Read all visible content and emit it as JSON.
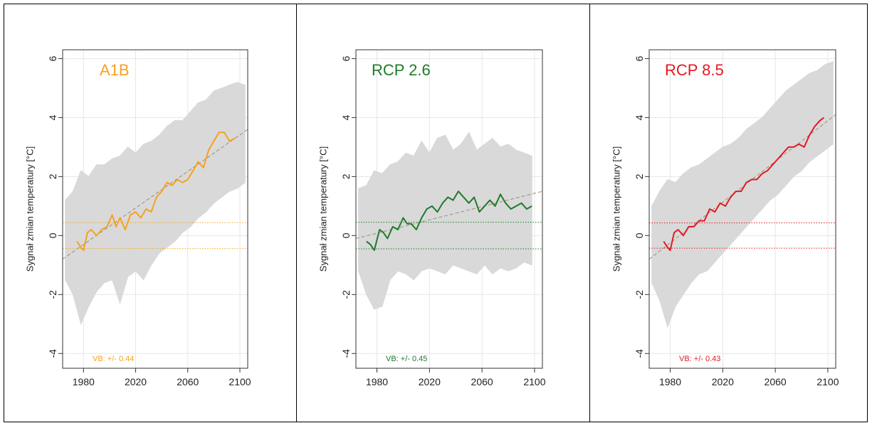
{
  "chart_data": [
    {
      "type": "line",
      "title": "A1B",
      "ylabel": "Sygnał zmian temperatury [°C]",
      "xlabel": "",
      "xlim": [
        1964,
        2106
      ],
      "ylim": [
        -4.5,
        6.3
      ],
      "xticks": [
        1980,
        2020,
        2060,
        2100
      ],
      "yticks": [
        -4,
        -2,
        0,
        2,
        4,
        6
      ],
      "grid": true,
      "color": "#f5a21f",
      "annotation": "VB: +/- 0.44",
      "threshold": 0.44,
      "trend": {
        "x": [
          1964,
          2106
        ],
        "y": [
          -0.8,
          3.6
        ]
      },
      "series": [
        {
          "x": [
            1975,
            1978,
            1980,
            1983,
            1986,
            1990,
            1994,
            1998,
            2002,
            2005,
            2008,
            2012,
            2016,
            2020,
            2024,
            2028,
            2032,
            2036,
            2040,
            2044,
            2048,
            2052,
            2056,
            2060,
            2064,
            2068,
            2072,
            2076,
            2080,
            2084,
            2088,
            2092,
            2096
          ],
          "y": [
            -0.2,
            -0.4,
            -0.5,
            0.1,
            0.2,
            0.0,
            0.2,
            0.3,
            0.7,
            0.3,
            0.6,
            0.2,
            0.7,
            0.8,
            0.6,
            0.9,
            0.8,
            1.3,
            1.5,
            1.8,
            1.7,
            1.9,
            1.8,
            1.9,
            2.2,
            2.5,
            2.3,
            2.9,
            3.2,
            3.5,
            3.5,
            3.2,
            3.3
          ]
        }
      ],
      "band": {
        "x": [
          1966,
          1972,
          1978,
          1984,
          1990,
          1996,
          2002,
          2008,
          2014,
          2020,
          2026,
          2032,
          2038,
          2044,
          2050,
          2056,
          2062,
          2068,
          2074,
          2080,
          2086,
          2092,
          2098,
          2104
        ],
        "upper": [
          1.2,
          1.5,
          2.2,
          2.0,
          2.4,
          2.4,
          2.6,
          2.7,
          3.0,
          2.8,
          3.1,
          3.2,
          3.4,
          3.7,
          3.9,
          3.9,
          4.2,
          4.5,
          4.6,
          4.9,
          5.0,
          5.1,
          5.2,
          5.1
        ],
        "lower": [
          -1.5,
          -2.0,
          -3.0,
          -2.4,
          -1.9,
          -1.6,
          -1.5,
          -2.3,
          -1.4,
          -1.2,
          -1.5,
          -1.0,
          -0.6,
          -0.4,
          -0.2,
          0.1,
          0.3,
          0.6,
          0.8,
          1.1,
          1.3,
          1.5,
          1.6,
          1.8
        ]
      }
    },
    {
      "type": "line",
      "title": "RCP 2.6",
      "ylabel": "Sygnał zmian temperatury [°C]",
      "xlabel": "",
      "xlim": [
        1964,
        2106
      ],
      "ylim": [
        -4.5,
        6.3
      ],
      "xticks": [
        1980,
        2020,
        2060,
        2100
      ],
      "yticks": [
        -4,
        -2,
        0,
        2,
        4,
        6
      ],
      "grid": true,
      "color": "#1f7a2a",
      "annotation": "VB: +/- 0.45",
      "threshold": 0.45,
      "trend": {
        "x": [
          1964,
          2106
        ],
        "y": [
          -0.1,
          1.5
        ]
      },
      "series": [
        {
          "x": [
            1972,
            1975,
            1978,
            1982,
            1985,
            1988,
            1992,
            1996,
            2000,
            2003,
            2006,
            2010,
            2014,
            2018,
            2022,
            2026,
            2030,
            2034,
            2038,
            2042,
            2046,
            2050,
            2054,
            2058,
            2062,
            2066,
            2070,
            2074,
            2078,
            2082,
            2086,
            2090,
            2094,
            2098
          ],
          "y": [
            -0.2,
            -0.3,
            -0.5,
            0.2,
            0.1,
            -0.1,
            0.3,
            0.2,
            0.6,
            0.4,
            0.4,
            0.2,
            0.6,
            0.9,
            1.0,
            0.8,
            1.1,
            1.3,
            1.2,
            1.5,
            1.3,
            1.1,
            1.3,
            0.8,
            1.0,
            1.2,
            1.0,
            1.4,
            1.1,
            0.9,
            1.0,
            1.1,
            0.9,
            1.0
          ]
        }
      ],
      "band": {
        "x": [
          1966,
          1972,
          1978,
          1984,
          1990,
          1996,
          2002,
          2008,
          2014,
          2020,
          2026,
          2032,
          2038,
          2044,
          2050,
          2056,
          2062,
          2068,
          2074,
          2080,
          2086,
          2092,
          2098
        ],
        "upper": [
          1.6,
          1.7,
          2.2,
          2.1,
          2.4,
          2.5,
          2.8,
          2.7,
          3.2,
          2.8,
          3.3,
          3.4,
          2.9,
          3.1,
          3.5,
          2.9,
          3.1,
          3.3,
          3.0,
          3.1,
          2.9,
          2.8,
          2.7
        ],
        "lower": [
          -1.2,
          -2.0,
          -2.5,
          -2.4,
          -1.5,
          -1.2,
          -1.3,
          -1.5,
          -1.2,
          -1.1,
          -1.2,
          -1.3,
          -1.0,
          -1.1,
          -1.2,
          -1.3,
          -1.0,
          -1.3,
          -1.1,
          -1.2,
          -1.1,
          -0.9,
          -1.0
        ]
      }
    },
    {
      "type": "line",
      "title": "RCP 8.5",
      "ylabel": "Sygnał zmian temperatury [°C]",
      "xlabel": "",
      "xlim": [
        1964,
        2106
      ],
      "ylim": [
        -4.5,
        6.3
      ],
      "xticks": [
        1980,
        2020,
        2060,
        2100
      ],
      "yticks": [
        -4,
        -2,
        0,
        2,
        4,
        6
      ],
      "grid": true,
      "color": "#e11b22",
      "annotation": "VB: +/- 0.43",
      "threshold": 0.43,
      "trend": {
        "x": [
          1964,
          2106
        ],
        "y": [
          -0.8,
          4.1
        ]
      },
      "series": [
        {
          "x": [
            1975,
            1978,
            1980,
            1983,
            1986,
            1990,
            1994,
            1998,
            2002,
            2006,
            2010,
            2014,
            2018,
            2022,
            2026,
            2030,
            2034,
            2038,
            2042,
            2046,
            2050,
            2054,
            2058,
            2062,
            2066,
            2070,
            2074,
            2078,
            2082,
            2086,
            2090,
            2094,
            2097
          ],
          "y": [
            -0.2,
            -0.4,
            -0.5,
            0.1,
            0.2,
            0.0,
            0.3,
            0.3,
            0.5,
            0.5,
            0.9,
            0.8,
            1.1,
            1.0,
            1.3,
            1.5,
            1.5,
            1.8,
            1.9,
            1.9,
            2.1,
            2.2,
            2.4,
            2.6,
            2.8,
            3.0,
            3.0,
            3.1,
            3.0,
            3.4,
            3.7,
            3.9,
            4.0
          ]
        }
      ],
      "band": {
        "x": [
          1966,
          1972,
          1978,
          1984,
          1990,
          1996,
          2002,
          2008,
          2014,
          2020,
          2026,
          2032,
          2038,
          2044,
          2050,
          2056,
          2062,
          2068,
          2074,
          2080,
          2086,
          2092,
          2098,
          2104
        ],
        "upper": [
          1.0,
          1.5,
          1.9,
          1.8,
          2.1,
          2.3,
          2.4,
          2.6,
          2.8,
          3.0,
          3.1,
          3.3,
          3.6,
          3.8,
          4.0,
          4.3,
          4.6,
          4.9,
          5.1,
          5.3,
          5.5,
          5.6,
          5.8,
          5.9
        ],
        "lower": [
          -1.6,
          -2.2,
          -3.1,
          -2.4,
          -2.0,
          -1.6,
          -1.3,
          -1.2,
          -0.9,
          -0.6,
          -0.3,
          0.0,
          0.3,
          0.6,
          0.9,
          1.2,
          1.4,
          1.7,
          2.0,
          2.2,
          2.5,
          2.7,
          2.9,
          3.1
        ]
      }
    }
  ]
}
